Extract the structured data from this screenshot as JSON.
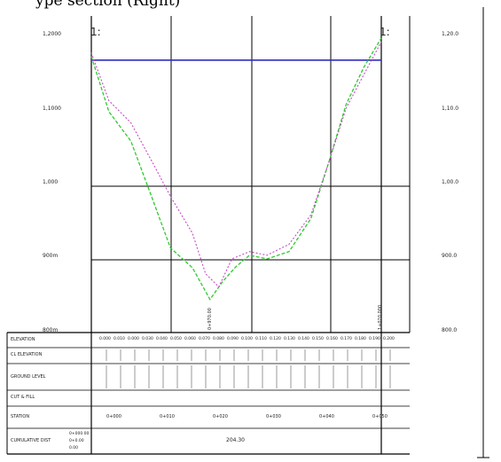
{
  "caption": "ype section (Right)",
  "markers": {
    "left": "1:",
    "right": "1:"
  },
  "left_axis": [
    "1,2000",
    "1,1000",
    "1,000",
    "900m",
    "800m"
  ],
  "right_axis": [
    "1,20.0",
    "1,10.0",
    "1,00.0",
    "900.0",
    "800.0"
  ],
  "table_labels": [
    "ELEVATION",
    "CL ELEVATION",
    "GROUND LEVEL",
    "CUT & FILL",
    "STATION",
    "CUMULATIVE DIST"
  ],
  "row0_values": [
    "0.000",
    "0.010",
    "0.000",
    "0.030",
    "0.040",
    "0.050",
    "0.060",
    "0.070",
    "0.080",
    "0.090",
    "0.100",
    "0.110",
    "0.120",
    "0.130",
    "0.140",
    "0.150",
    "0.160",
    "0.170",
    "0.180",
    "0.190",
    "0.200"
  ],
  "station_row": [
    "0+000",
    "0+010",
    "0+020",
    "0+030",
    "0+040",
    "0+050"
  ],
  "cumulative_left": [
    "0+000.00",
    "0+0.00",
    "0.00"
  ],
  "cumulative_mid": "204.30",
  "bottom_vertical_labels": [
    "1+020.000",
    "0+970.00"
  ],
  "colors": {
    "design": "#2f2fbf",
    "ground_green": "#2fc92f",
    "ground_magenta": "#c44cc4",
    "grid": "#000000"
  },
  "chart_data": {
    "type": "line",
    "title": "",
    "xlabel": "",
    "ylabel": "",
    "ylim": [
      800,
      1230
    ],
    "series": [
      {
        "name": "",
        "kind": "design level",
        "x": [
          0,
          330
        ],
        "y": [
          1170,
          1170
        ]
      },
      {
        "name": "",
        "kind": "ground profile",
        "x": [
          0,
          20,
          45,
          70,
          90,
          115,
          135,
          150,
          165,
          180,
          200,
          225,
          250,
          270,
          290,
          310,
          330
        ],
        "y": [
          1175,
          1100,
          1060,
          980,
          915,
          888,
          845,
          870,
          890,
          905,
          900,
          910,
          955,
          1030,
          1110,
          1160,
          1200
        ]
      },
      {
        "name": "",
        "kind": "ground profile",
        "x": [
          0,
          20,
          45,
          70,
          90,
          115,
          130,
          145,
          160,
          180,
          200,
          225,
          250,
          270,
          290,
          310,
          330
        ],
        "y": [
          1180,
          1115,
          1085,
          1030,
          985,
          935,
          880,
          862,
          900,
          910,
          905,
          920,
          960,
          1030,
          1105,
          1150,
          1195
        ]
      }
    ],
    "xlim": [
      0,
      330
    ]
  }
}
